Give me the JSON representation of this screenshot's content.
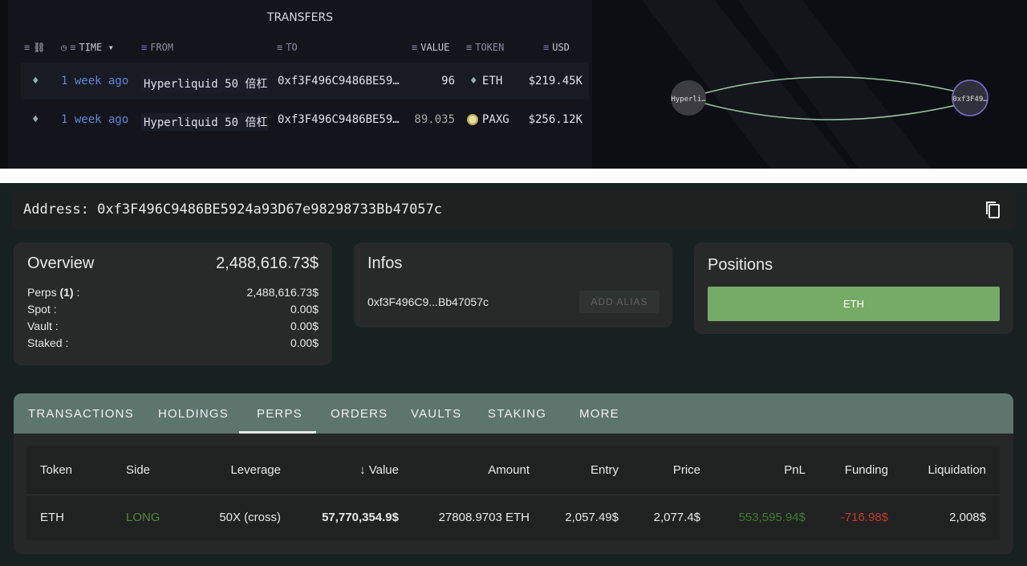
{
  "transfers": {
    "title": "TRANSFERS",
    "headers": {
      "time": "TIME",
      "from": "FROM",
      "to": "TO",
      "value": "VALUE",
      "token": "TOKEN",
      "usd": "USD"
    },
    "rows": [
      {
        "time": "1 week ago",
        "from": "Hyperliquid 50 倍杠",
        "to": "0xf3F496C9486BE59…",
        "value": "96",
        "token": "ETH",
        "usd": "$219.45K"
      },
      {
        "time": "1 week ago",
        "from": "Hyperliquid 50 倍杠",
        "to": "0xf3F496C9486BE59…",
        "value": "89.035",
        "token": "PAXG",
        "usd": "$256.12K"
      }
    ]
  },
  "graph": {
    "node_from": "Hyperli…",
    "node_to": "0xf3F49…",
    "edge_color": "#9bc9a0",
    "node_to_border": "#7b6fd0"
  },
  "address": {
    "label": "Address:",
    "value": "0xf3F496C9486BE5924a93D67e98298733Bb47057c"
  },
  "overview": {
    "title": "Overview",
    "total": "2,488,616.73$",
    "rows": [
      {
        "label": "Perps ",
        "bold": "(1)",
        "suffix": " :",
        "value": "2,488,616.73$"
      },
      {
        "label": "Spot :",
        "value": "0.00$"
      },
      {
        "label": "Vault :",
        "value": "0.00$"
      },
      {
        "label": "Staked :",
        "value": "0.00$"
      }
    ]
  },
  "infos": {
    "title": "Infos",
    "address": "0xf3F496C9...Bb47057c",
    "add_alias": "ADD ALIAS"
  },
  "positions": {
    "title": "Positions",
    "items": [
      "ETH"
    ],
    "accent": "#76ab67"
  },
  "tabs": [
    "TRANSACTIONS",
    "HOLDINGS",
    "PERPS",
    "ORDERS",
    "VAULTS",
    "STAKING",
    "MORE"
  ],
  "active_tab": "PERPS",
  "perps": {
    "headers": [
      "Token",
      "Side",
      "Leverage",
      "Value",
      "Amount",
      "Entry",
      "Price",
      "PnL",
      "Funding",
      "Liquidation"
    ],
    "rows": [
      [
        "ETH",
        "LONG",
        "50X (cross)",
        "57,770,354.9$",
        "27808.9703 ETH",
        "2,057.49$",
        "2,077.4$",
        "553,595.94$",
        "-716.98$",
        "2,008$"
      ]
    ],
    "colors": {
      "long": "#4e8a3c",
      "pnl": "#3f7a33",
      "funding": "#c33b2c"
    }
  }
}
